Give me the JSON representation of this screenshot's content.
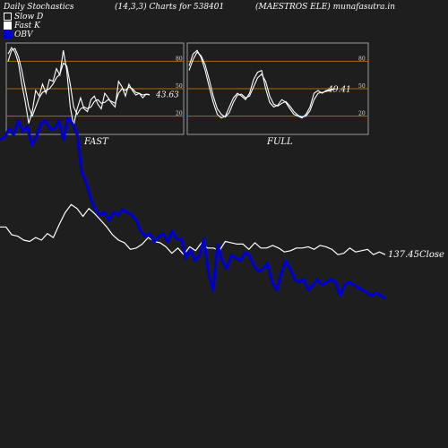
{
  "header": {
    "title": "Daily Stochastics",
    "params": "(14,3,3) Charts for 538401",
    "symbol": "(MAESTROS ELE) munafasutra.in"
  },
  "legend": [
    {
      "label": "Slow  D",
      "swatch": "dark"
    },
    {
      "label": "Fast K",
      "swatch": "white"
    },
    {
      "label": "OBV",
      "swatch": "blue"
    }
  ],
  "colors": {
    "background": "#1e1e1e",
    "price_line": "#ffffff",
    "obv_line": "#0000cc",
    "level_line": "#b06a00",
    "panel_border": "#9a9a9a"
  },
  "chart_data": [
    {
      "type": "line",
      "panel": "FAST",
      "title": "FAST",
      "ylim": [
        0,
        100
      ],
      "ticks": [
        20,
        50,
        80
      ],
      "levels": [
        20,
        50,
        80
      ],
      "last_value_label": "43.63",
      "series": [
        {
          "values": [
            88,
            95,
            90,
            78,
            55,
            35,
            12,
            25,
            48,
            42,
            55,
            45,
            60,
            58,
            72,
            65,
            92,
            70,
            30,
            10,
            28,
            40,
            28,
            25,
            38,
            42,
            33,
            28,
            45,
            40,
            34,
            30,
            58,
            52,
            42,
            55,
            48,
            43,
            45,
            40,
            44,
            43
          ]
        },
        {
          "values": [
            80,
            92,
            94,
            85,
            70,
            50,
            30,
            20,
            30,
            40,
            46,
            48,
            50,
            55,
            62,
            66,
            78,
            75,
            55,
            30,
            22,
            28,
            30,
            28,
            30,
            36,
            38,
            34,
            35,
            38,
            36,
            34,
            45,
            50,
            48,
            52,
            50,
            46,
            45,
            43,
            44,
            43.63
          ]
        }
      ]
    },
    {
      "type": "line",
      "panel": "FULL",
      "title": "FULL",
      "ylim": [
        0,
        100
      ],
      "ticks": [
        20,
        50,
        80
      ],
      "levels": [
        20,
        50,
        80
      ],
      "last_value_label": "49.41",
      "series": [
        {
          "values": [
            75,
            88,
            92,
            84,
            70,
            52,
            35,
            22,
            18,
            20,
            30,
            40,
            45,
            42,
            38,
            45,
            60,
            68,
            70,
            50,
            35,
            30,
            32,
            38,
            35,
            28,
            22,
            20,
            18,
            22,
            30,
            45,
            48,
            45,
            48,
            49,
            50
          ]
        },
        {
          "values": [
            70,
            82,
            90,
            86,
            76,
            60,
            42,
            28,
            22,
            19,
            24,
            35,
            43,
            44,
            40,
            42,
            52,
            62,
            66,
            58,
            42,
            33,
            31,
            34,
            36,
            31,
            25,
            21,
            19,
            20,
            26,
            38,
            45,
            46,
            47,
            48,
            49.41
          ]
        }
      ]
    },
    {
      "type": "line",
      "panel": "price_obv",
      "last_value_label": "137.45",
      "last_value_suffix": "Close",
      "series": [
        {
          "name": "Close",
          "values": [
            158,
            158,
            152,
            151,
            148,
            147,
            150,
            148,
            153,
            150,
            160,
            169,
            175,
            172,
            166,
            172,
            168,
            163,
            158,
            152,
            148,
            146,
            141,
            142,
            145,
            150,
            147,
            146,
            143,
            138,
            142,
            137,
            143,
            140,
            146,
            142,
            142,
            140,
            147,
            146,
            145,
            145,
            141,
            146,
            142,
            142,
            144,
            142,
            139,
            140,
            142,
            142,
            143,
            141,
            144,
            143,
            141,
            137,
            138,
            142,
            139,
            140,
            141,
            137,
            139,
            137
          ]
        },
        {
          "name": "OBV",
          "values": [
            220,
            221,
            224,
            222,
            227,
            223,
            225,
            218,
            221,
            226,
            227,
            224,
            224,
            227,
            220,
            228,
            226,
            222,
            208,
            204,
            198,
            194,
            192,
            193,
            190,
            193,
            192,
            194,
            193,
            192,
            190,
            186,
            184,
            185,
            182,
            184,
            185,
            182,
            186,
            183,
            183,
            176,
            179,
            175,
            177,
            183,
            170,
            164,
            181,
            175,
            172,
            177,
            176,
            175,
            178,
            177,
            173,
            171,
            172,
            174,
            167,
            164,
            170,
            175,
            172,
            168,
            167,
            168,
            164,
            166,
            168,
            166,
            167,
            168,
            167,
            162,
            166,
            167,
            166,
            165,
            164,
            163,
            162,
            163,
            162,
            161
          ]
        }
      ]
    }
  ]
}
